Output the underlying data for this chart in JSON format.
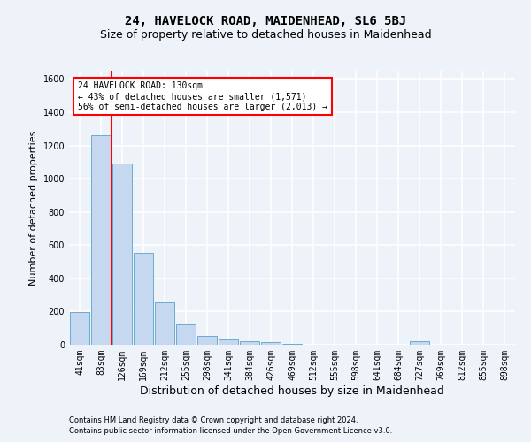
{
  "title": "24, HAVELOCK ROAD, MAIDENHEAD, SL6 5BJ",
  "subtitle": "Size of property relative to detached houses in Maidenhead",
  "xlabel": "Distribution of detached houses by size in Maidenhead",
  "ylabel": "Number of detached properties",
  "footer_line1": "Contains HM Land Registry data © Crown copyright and database right 2024.",
  "footer_line2": "Contains public sector information licensed under the Open Government Licence v3.0.",
  "categories": [
    "41sqm",
    "83sqm",
    "126sqm",
    "169sqm",
    "212sqm",
    "255sqm",
    "298sqm",
    "341sqm",
    "384sqm",
    "426sqm",
    "469sqm",
    "512sqm",
    "555sqm",
    "598sqm",
    "641sqm",
    "684sqm",
    "727sqm",
    "769sqm",
    "812sqm",
    "855sqm",
    "898sqm"
  ],
  "values": [
    195,
    1260,
    1090,
    555,
    255,
    120,
    55,
    30,
    20,
    15,
    5,
    2,
    0,
    0,
    0,
    0,
    20,
    0,
    0,
    0,
    0
  ],
  "bar_color": "#c5d8f0",
  "bar_edge_color": "#6aabd2",
  "vline_x": 1.5,
  "vline_color": "red",
  "annotation_text": "24 HAVELOCK ROAD: 130sqm\n← 43% of detached houses are smaller (1,571)\n56% of semi-detached houses are larger (2,013) →",
  "annotation_box_color": "white",
  "annotation_box_edge_color": "red",
  "ylim": [
    0,
    1650
  ],
  "yticks": [
    0,
    200,
    400,
    600,
    800,
    1000,
    1200,
    1400,
    1600
  ],
  "background_color": "#eef2f9",
  "grid_color": "white",
  "title_fontsize": 10,
  "subtitle_fontsize": 9,
  "ylabel_fontsize": 8,
  "xlabel_fontsize": 9,
  "tick_fontsize": 7,
  "annot_fontsize": 7,
  "footer_fontsize": 6
}
